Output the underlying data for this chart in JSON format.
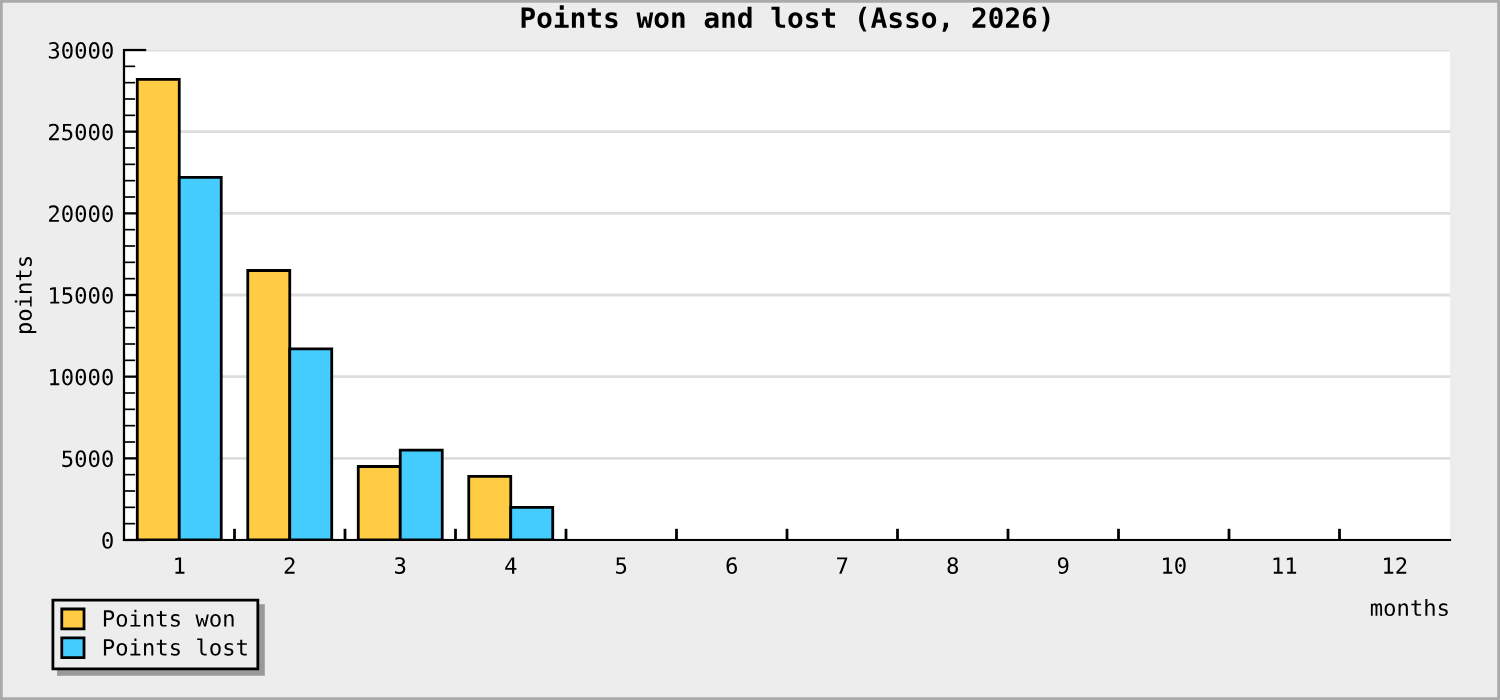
{
  "chart_data": {
    "type": "bar",
    "title": "Points won and lost (Asso, 2026)",
    "xlabel": "months",
    "ylabel": "points",
    "categories": [
      "1",
      "2",
      "3",
      "4",
      "5",
      "6",
      "7",
      "8",
      "9",
      "10",
      "11",
      "12"
    ],
    "series": [
      {
        "name": "Points won",
        "color": "#ffcc44",
        "values": [
          28200,
          16500,
          4500,
          3900,
          null,
          null,
          null,
          null,
          null,
          null,
          null,
          null
        ]
      },
      {
        "name": "Points lost",
        "color": "#44ccff",
        "values": [
          22200,
          11700,
          5500,
          2000,
          null,
          null,
          null,
          null,
          null,
          null,
          null,
          null
        ]
      }
    ],
    "ylim": [
      0,
      30000
    ],
    "yticks": [
      0,
      5000,
      10000,
      15000,
      20000,
      25000,
      30000
    ],
    "grid": "y",
    "legend": "bottom left"
  }
}
